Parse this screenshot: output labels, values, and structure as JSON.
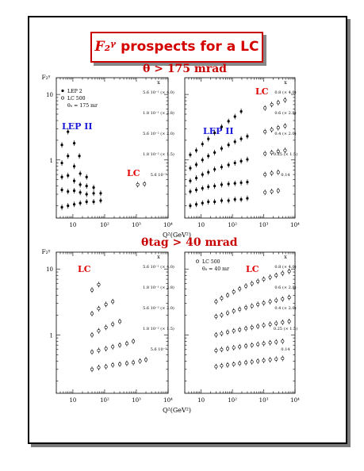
{
  "title": {
    "f_symbol": "F₂ᵞ",
    "text": "prospects for a LC"
  },
  "sections": [
    {
      "label": "θ > 175 mrad"
    },
    {
      "label": "θtag > 40 mrad"
    }
  ],
  "colors": {
    "title": "#d40000",
    "blue_label": "#1a1ad8",
    "red_label": "#e00000",
    "frame": "#000000"
  },
  "chart_data": [
    {
      "type": "scatter",
      "panel": "top-left",
      "log_x": true,
      "log_y": true,
      "xlim": [
        3,
        10000
      ],
      "ylim": [
        0.13,
        18
      ],
      "x_ticks": [
        "10",
        "10²",
        "10³",
        "10⁴"
      ],
      "y_ticks": [
        "1",
        "10"
      ],
      "ylabel": "F₂ᵞ",
      "legend": [
        "LEP 2",
        "LC 500",
        "θ₀ = 175 mr"
      ],
      "labels": [
        {
          "text": "LEP II",
          "color": "blue"
        },
        {
          "text": "LC",
          "color": "red"
        }
      ],
      "right_column": {
        "header": "x",
        "entries": [
          "5.6 10⁻¹ (× 4.0)",
          "1.8 10⁻¹ (× 2.8)",
          "5.6 10⁻² (× 2.0)",
          "1.8 10⁻² (× 1.5)",
          "5.6 10⁻³"
        ]
      },
      "series": [
        {
          "name": "LEP 2",
          "marker": "filled",
          "x": [
            4.5,
            7,
            11,
            16
          ],
          "y": [
            1.7,
            2.7,
            1.8,
            1.15
          ]
        },
        {
          "name": "LEP 2",
          "marker": "filled",
          "x": [
            4.5,
            7,
            11,
            17,
            27
          ],
          "y": [
            0.9,
            1.15,
            0.8,
            0.62,
            0.55
          ]
        },
        {
          "name": "LEP 2",
          "marker": "filled",
          "x": [
            4.5,
            7,
            11,
            17,
            27,
            45
          ],
          "y": [
            0.55,
            0.58,
            0.48,
            0.42,
            0.4,
            0.38
          ]
        },
        {
          "name": "LEP 2",
          "marker": "filled",
          "x": [
            4.5,
            7,
            11,
            17,
            27,
            45,
            75
          ],
          "y": [
            0.35,
            0.33,
            0.34,
            0.32,
            0.3,
            0.31,
            0.31
          ]
        },
        {
          "name": "LEP 2",
          "marker": "filled",
          "x": [
            4.5,
            7,
            11,
            17,
            27,
            45,
            75
          ],
          "y": [
            0.19,
            0.2,
            0.21,
            0.22,
            0.23,
            0.23,
            0.24
          ]
        },
        {
          "name": "LC 500",
          "marker": "open",
          "x": [
            1100,
            1800
          ],
          "y": [
            0.42,
            0.43
          ]
        }
      ]
    },
    {
      "type": "scatter",
      "panel": "top-right",
      "log_x": true,
      "log_y": true,
      "xlim": [
        3,
        10000
      ],
      "ylim": [
        0.13,
        18
      ],
      "x_ticks": [
        "10",
        "10²",
        "10³",
        "10⁴"
      ],
      "xlabel": "Q²(GeV²)",
      "labels": [
        {
          "text": "LEP II",
          "color": "blue"
        },
        {
          "text": "LC",
          "color": "red"
        }
      ],
      "right_column": {
        "header": "x",
        "entries": [
          "0.8 (× 4.0)",
          "0.6 (× 2.8)",
          "0.4 (× 2.0)",
          "0.25 (× 1.5)",
          "0.14"
        ]
      },
      "series": [
        {
          "name": "LEP 2",
          "marker": "filled",
          "x": [
            4.5,
            7,
            11,
            17,
            27,
            45,
            75,
            120,
            190
          ],
          "y": [
            1.2,
            1.4,
            1.75,
            2.1,
            2.6,
            3.2,
            3.9,
            4.6,
            5.5
          ]
        },
        {
          "name": "LEP 2",
          "marker": "filled",
          "x": [
            4.5,
            7,
            11,
            17,
            27,
            45,
            75,
            120,
            190,
            300
          ],
          "y": [
            0.75,
            0.85,
            1.0,
            1.15,
            1.3,
            1.5,
            1.7,
            1.9,
            2.1,
            2.3
          ]
        },
        {
          "name": "LEP 2",
          "marker": "filled",
          "x": [
            4.5,
            7,
            11,
            17,
            27,
            45,
            75,
            120,
            190,
            300
          ],
          "y": [
            0.48,
            0.53,
            0.6,
            0.65,
            0.72,
            0.78,
            0.84,
            0.9,
            0.96,
            1.02
          ]
        },
        {
          "name": "LEP 2",
          "marker": "filled",
          "x": [
            4.5,
            7,
            11,
            17,
            27,
            45,
            75,
            120,
            190,
            300
          ],
          "y": [
            0.33,
            0.35,
            0.37,
            0.39,
            0.4,
            0.42,
            0.43,
            0.44,
            0.45,
            0.46
          ]
        },
        {
          "name": "LEP 2",
          "marker": "filled",
          "x": [
            4.5,
            7,
            11,
            17,
            27,
            45,
            75,
            120,
            190,
            300
          ],
          "y": [
            0.2,
            0.21,
            0.22,
            0.23,
            0.23,
            0.24,
            0.24,
            0.25,
            0.25,
            0.26
          ]
        },
        {
          "name": "LC 500",
          "marker": "open",
          "x": [
            1100,
            1800,
            2900,
            4800
          ],
          "y": [
            6.2,
            7.0,
            7.5,
            8.2
          ]
        },
        {
          "name": "LC 500",
          "marker": "open",
          "x": [
            1100,
            1800,
            2900,
            4800
          ],
          "y": [
            2.7,
            2.9,
            3.1,
            3.3
          ]
        },
        {
          "name": "LC 500",
          "marker": "open",
          "x": [
            1100,
            1800,
            2900,
            4800
          ],
          "y": [
            1.25,
            1.3,
            1.35,
            1.4
          ]
        },
        {
          "name": "LC 500",
          "marker": "open",
          "x": [
            1100,
            1800,
            2900
          ],
          "y": [
            0.6,
            0.63,
            0.65
          ]
        },
        {
          "name": "LC 500",
          "marker": "open",
          "x": [
            1100,
            1800,
            2900
          ],
          "y": [
            0.32,
            0.33,
            0.34
          ]
        }
      ]
    },
    {
      "type": "scatter",
      "panel": "bottom-left",
      "log_x": true,
      "log_y": true,
      "xlim": [
        3,
        10000
      ],
      "ylim": [
        0.13,
        18
      ],
      "x_ticks": [
        "10",
        "10²",
        "10³",
        "10⁴"
      ],
      "y_ticks": [
        "1",
        "10"
      ],
      "ylabel": "F₂ᵞ",
      "labels": [
        {
          "text": "LC",
          "color": "red"
        }
      ],
      "right_column": {
        "header": "x",
        "entries": [
          "5.6 10⁻¹ (× 4.0)",
          "1.8 10⁻¹ (× 2.8)",
          "5.6 10⁻² (× 2.0)",
          "1.8 10⁻² (× 1.5)",
          "5.6 10⁻³"
        ]
      },
      "series": [
        {
          "name": "LC 500",
          "marker": "open",
          "x": [
            40,
            65
          ],
          "y": [
            4.8,
            5.8
          ]
        },
        {
          "name": "LC 500",
          "marker": "open",
          "x": [
            40,
            65,
            110,
            180
          ],
          "y": [
            2.1,
            2.5,
            2.9,
            3.2
          ]
        },
        {
          "name": "LC 500",
          "marker": "open",
          "x": [
            40,
            65,
            110,
            180,
            300
          ],
          "y": [
            1.0,
            1.15,
            1.3,
            1.45,
            1.6
          ]
        },
        {
          "name": "LC 500",
          "marker": "open",
          "x": [
            40,
            65,
            110,
            180,
            300,
            500,
            800
          ],
          "y": [
            0.55,
            0.58,
            0.62,
            0.66,
            0.7,
            0.74,
            0.8
          ]
        },
        {
          "name": "LC 500",
          "marker": "open",
          "x": [
            40,
            65,
            110,
            180,
            300,
            500,
            800,
            1300,
            2000
          ],
          "y": [
            0.3,
            0.32,
            0.33,
            0.35,
            0.36,
            0.37,
            0.38,
            0.4,
            0.42
          ]
        }
      ]
    },
    {
      "type": "scatter",
      "panel": "bottom-right",
      "log_x": true,
      "log_y": true,
      "xlim": [
        3,
        10000
      ],
      "ylim": [
        0.13,
        18
      ],
      "x_ticks": [
        "10",
        "10²",
        "10³",
        "10⁴"
      ],
      "xlabel": "Q²(GeV²)",
      "legend": [
        "LC 500",
        "θ₀ = 40 mr"
      ],
      "labels": [
        {
          "text": "LC",
          "color": "red"
        }
      ],
      "right_column": {
        "header": "x",
        "entries": [
          "0.8 (× 4.0)",
          "0.6 (× 2.8)",
          "0.4 (× 2.0)",
          "0.25 (× 1.5)",
          "0.14"
        ]
      },
      "series": [
        {
          "name": "LC 500",
          "marker": "open",
          "x": [
            30,
            45,
            70,
            110,
            170,
            270,
            420,
            650,
            1000,
            1600,
            2500,
            4000,
            6500
          ],
          "y": [
            3.2,
            3.6,
            4.0,
            4.5,
            5.0,
            5.5,
            6.0,
            6.5,
            7.0,
            7.5,
            8.0,
            8.6,
            9.2
          ]
        },
        {
          "name": "LC 500",
          "marker": "open",
          "x": [
            30,
            45,
            70,
            110,
            170,
            270,
            420,
            650,
            1000,
            1600,
            2500,
            4000,
            6500
          ],
          "y": [
            1.9,
            2.0,
            2.15,
            2.3,
            2.45,
            2.6,
            2.75,
            2.9,
            3.05,
            3.2,
            3.35,
            3.5,
            3.7
          ]
        },
        {
          "name": "LC 500",
          "marker": "open",
          "x": [
            30,
            45,
            70,
            110,
            170,
            270,
            420,
            650,
            1000,
            1600,
            2500,
            4000,
            6500
          ],
          "y": [
            1.0,
            1.05,
            1.1,
            1.15,
            1.2,
            1.25,
            1.3,
            1.35,
            1.4,
            1.45,
            1.5,
            1.55,
            1.6
          ]
        },
        {
          "name": "LC 500",
          "marker": "open",
          "x": [
            30,
            45,
            70,
            110,
            170,
            270,
            420,
            650,
            1000,
            1600,
            2500,
            4000
          ],
          "y": [
            0.58,
            0.6,
            0.62,
            0.64,
            0.66,
            0.68,
            0.7,
            0.72,
            0.74,
            0.76,
            0.78,
            0.8
          ]
        },
        {
          "name": "LC 500",
          "marker": "open",
          "x": [
            30,
            45,
            70,
            110,
            170,
            270,
            420,
            650,
            1000,
            1600,
            2500,
            4000
          ],
          "y": [
            0.33,
            0.34,
            0.35,
            0.36,
            0.37,
            0.38,
            0.39,
            0.4,
            0.41,
            0.42,
            0.43,
            0.44
          ]
        }
      ]
    }
  ]
}
